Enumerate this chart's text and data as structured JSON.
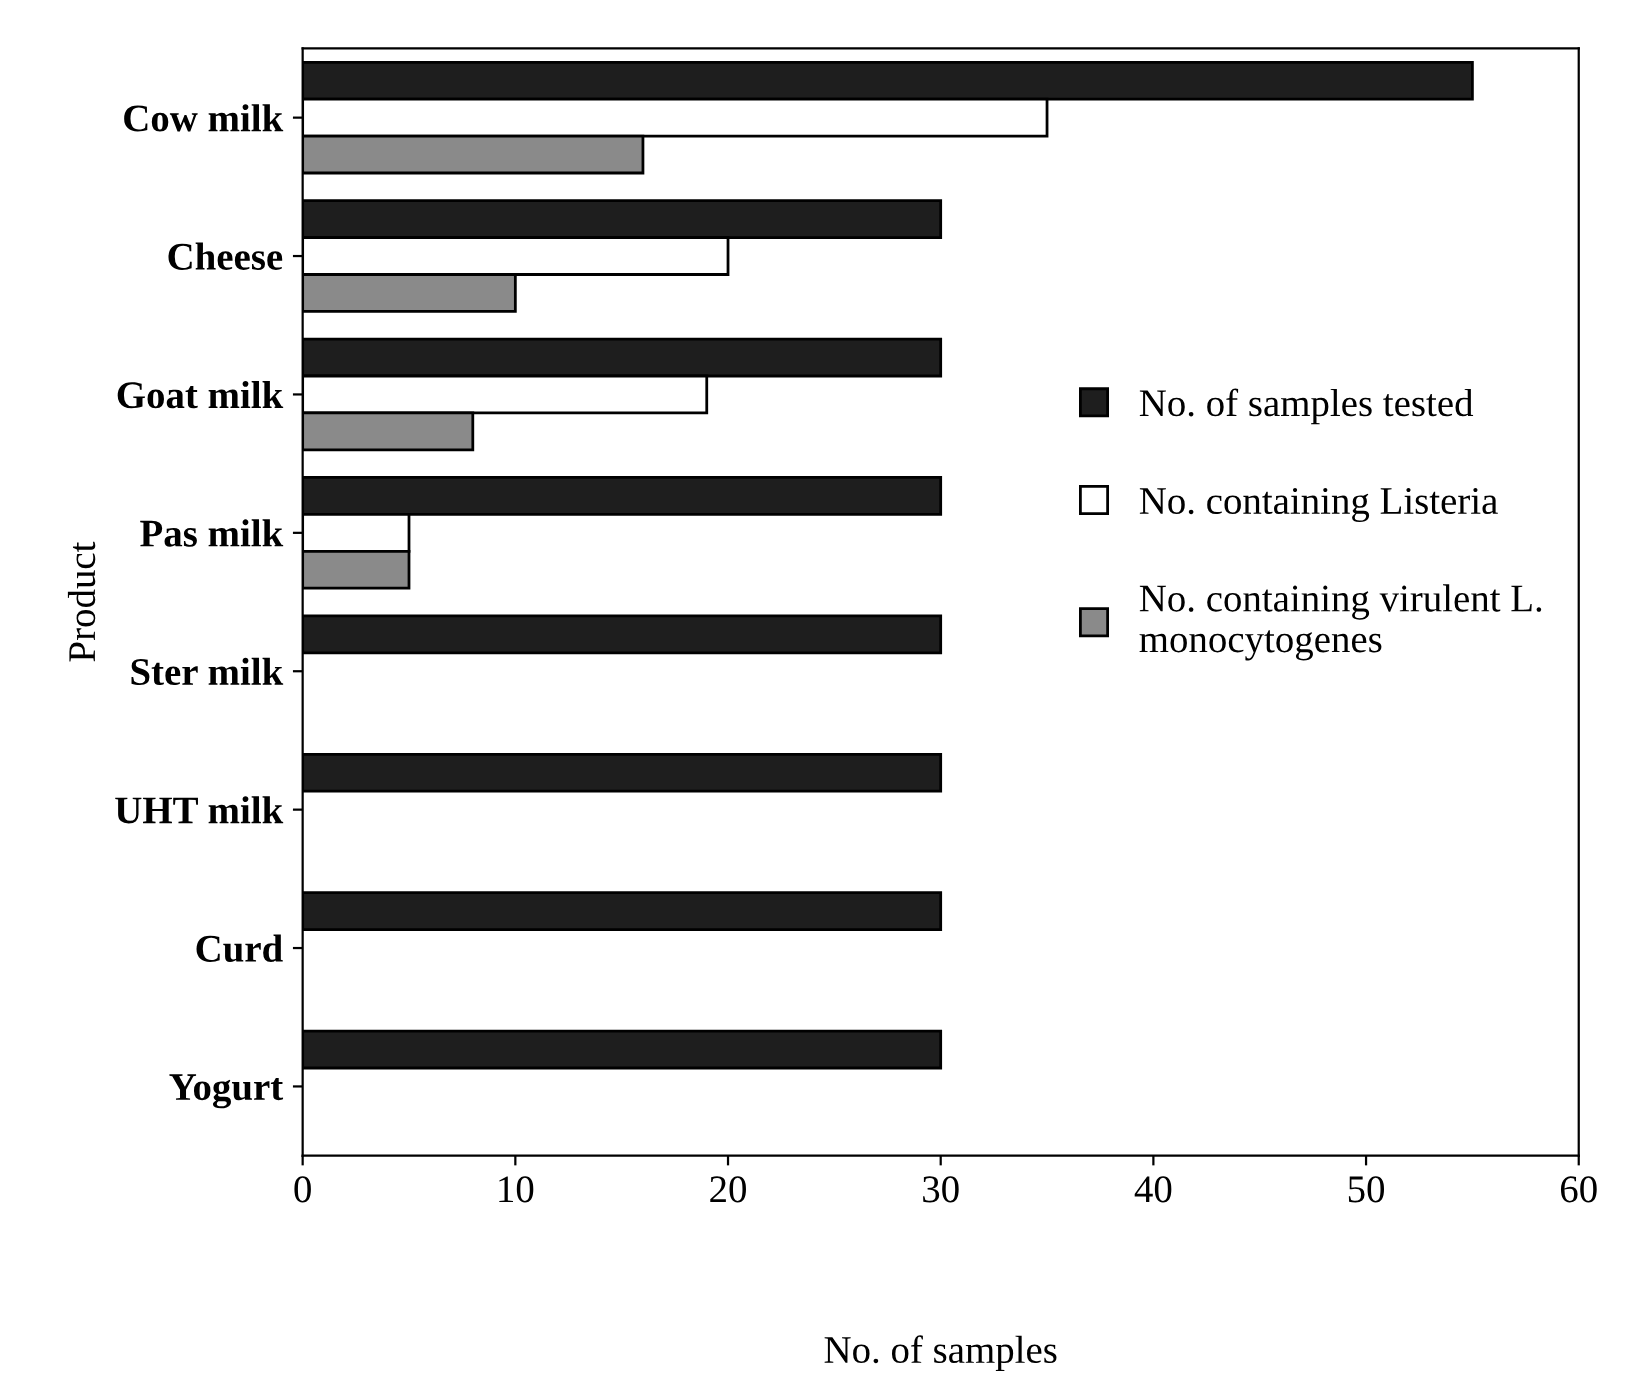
{
  "chart_data": {
    "type": "bar",
    "orientation": "horizontal",
    "xlabel": "No. of samples",
    "ylabel": "Product",
    "categories": [
      "Cow milk",
      "Cheese",
      "Goat milk",
      "Pas milk",
      "Ster milk",
      "UHT milk",
      "Curd",
      "Yogurt"
    ],
    "series": [
      {
        "name": "No. of samples tested",
        "color": "#1e1e1e",
        "values": [
          55,
          30,
          30,
          30,
          30,
          30,
          30,
          30
        ]
      },
      {
        "name": "No. containing Listeria",
        "color": "#ffffff",
        "values": [
          35,
          20,
          19,
          5,
          0,
          0,
          0,
          0
        ]
      },
      {
        "name": "No. containing virulent L.\nmonocytogenes",
        "color": "#8a8a8a",
        "values": [
          16,
          10,
          8,
          5,
          0,
          0,
          0,
          0
        ]
      }
    ],
    "xlim": [
      0,
      60
    ],
    "xticks": [
      0,
      10,
      20,
      30,
      40,
      50,
      60
    ],
    "grid": false,
    "legend": "right"
  }
}
